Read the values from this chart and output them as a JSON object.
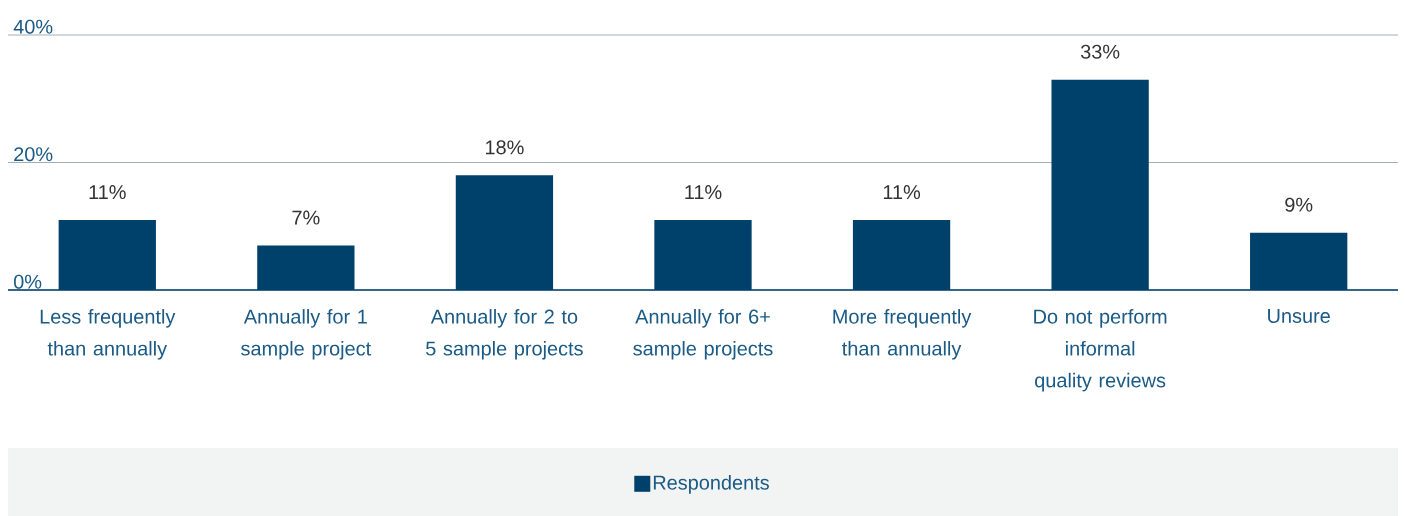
{
  "chart_data": {
    "type": "bar",
    "categories": [
      "Less frequently than annually",
      "Annually for 1 sample project",
      "Annually for 2 to 5 sample projects",
      "Annually for 6+ sample projects",
      "More frequently than annually",
      "Do not perform informal quality reviews",
      "Unsure"
    ],
    "series": [
      {
        "name": "Respondents",
        "color": "#00416b",
        "values": [
          11,
          7,
          18,
          11,
          11,
          33,
          9
        ]
      }
    ],
    "value_labels": [
      "11%",
      "7%",
      "18%",
      "11%",
      "11%",
      "33%",
      "9%"
    ],
    "ylim": [
      0,
      40
    ],
    "yticks": [
      {
        "value": 0,
        "label": "0%"
      },
      {
        "value": 20,
        "label": "20%"
      },
      {
        "value": 40,
        "label": "40%"
      }
    ],
    "grid": "y",
    "legend": "bottom"
  }
}
